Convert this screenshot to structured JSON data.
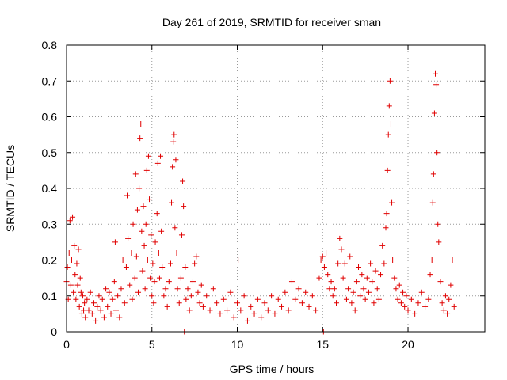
{
  "chart_data": {
    "type": "scatter",
    "title": "Day 261 of 2019, SRMTID for receiver sman",
    "xlabel": "GPS time / hours",
    "ylabel": "SRMTID / TECUs",
    "xlim": [
      0,
      24.5
    ],
    "ylim": [
      0,
      0.8
    ],
    "x_ticks": [
      0,
      5,
      10,
      15,
      20
    ],
    "x_tick_labels": [
      "0",
      "5",
      "10",
      "15",
      "20"
    ],
    "y_ticks": [
      0,
      0.1,
      0.2,
      0.3,
      0.4,
      0.5,
      0.6,
      0.7,
      0.8
    ],
    "y_tick_labels": [
      "0",
      "0.1",
      "0.2",
      "0.3",
      "0.4",
      "0.5",
      "0.6",
      "0.7",
      "0.8"
    ],
    "grid": true,
    "marker": "+",
    "marker_color": "#e00000",
    "series": [
      {
        "name": "SRMTID",
        "points": [
          [
            0.0,
            0.14
          ],
          [
            0.05,
            0.18
          ],
          [
            0.1,
            0.09
          ],
          [
            0.15,
            0.22
          ],
          [
            0.2,
            0.31
          ],
          [
            0.25,
            0.13
          ],
          [
            0.3,
            0.2
          ],
          [
            0.35,
            0.32
          ],
          [
            0.4,
            0.11
          ],
          [
            0.45,
            0.24
          ],
          [
            0.5,
            0.16
          ],
          [
            0.55,
            0.09
          ],
          [
            0.6,
            0.19
          ],
          [
            0.65,
            0.13
          ],
          [
            0.7,
            0.23
          ],
          [
            0.75,
            0.07
          ],
          [
            0.8,
            0.15
          ],
          [
            0.85,
            0.11
          ],
          [
            0.9,
            0.05
          ],
          [
            0.95,
            0.1
          ],
          [
            1.0,
            0.06
          ],
          [
            1.05,
            0.08
          ],
          [
            1.1,
            0.04
          ],
          [
            1.2,
            0.09
          ],
          [
            1.3,
            0.06
          ],
          [
            1.4,
            0.11
          ],
          [
            1.5,
            0.05
          ],
          [
            1.6,
            0.08
          ],
          [
            1.7,
            0.03
          ],
          [
            1.8,
            0.07
          ],
          [
            1.9,
            0.1
          ],
          [
            2.0,
            0.06
          ],
          [
            2.1,
            0.09
          ],
          [
            2.2,
            0.04
          ],
          [
            2.3,
            0.12
          ],
          [
            2.4,
            0.07
          ],
          [
            2.5,
            0.11
          ],
          [
            2.6,
            0.05
          ],
          [
            2.7,
            0.09
          ],
          [
            2.8,
            0.14
          ],
          [
            2.85,
            0.25
          ],
          [
            2.9,
            0.06
          ],
          [
            3.0,
            0.1
          ],
          [
            3.1,
            0.04
          ],
          [
            3.2,
            0.12
          ],
          [
            3.3,
            0.2
          ],
          [
            3.4,
            0.08
          ],
          [
            3.5,
            0.18
          ],
          [
            3.55,
            0.38
          ],
          [
            3.6,
            0.26
          ],
          [
            3.7,
            0.13
          ],
          [
            3.8,
            0.22
          ],
          [
            3.85,
            0.09
          ],
          [
            3.9,
            0.3
          ],
          [
            4.0,
            0.15
          ],
          [
            4.05,
            0.44
          ],
          [
            4.1,
            0.21
          ],
          [
            4.15,
            0.34
          ],
          [
            4.2,
            0.11
          ],
          [
            4.25,
            0.4
          ],
          [
            4.3,
            0.54
          ],
          [
            4.35,
            0.58
          ],
          [
            4.4,
            0.28
          ],
          [
            4.45,
            0.17
          ],
          [
            4.5,
            0.35
          ],
          [
            4.55,
            0.24
          ],
          [
            4.6,
            0.12
          ],
          [
            4.65,
            0.3
          ],
          [
            4.7,
            0.45
          ],
          [
            4.75,
            0.2
          ],
          [
            4.8,
            0.49
          ],
          [
            4.85,
            0.37
          ],
          [
            4.9,
            0.15
          ],
          [
            4.95,
            0.27
          ],
          [
            5.0,
            0.1
          ],
          [
            5.05,
            0.19
          ],
          [
            5.1,
            0.08
          ],
          [
            5.15,
            0.14
          ],
          [
            5.2,
            0.25
          ],
          [
            5.3,
            0.33
          ],
          [
            5.35,
            0.47
          ],
          [
            5.4,
            0.22
          ],
          [
            5.45,
            0.15
          ],
          [
            5.5,
            0.49
          ],
          [
            5.55,
            0.28
          ],
          [
            5.6,
            0.18
          ],
          [
            5.7,
            0.1
          ],
          [
            5.8,
            0.12
          ],
          [
            5.9,
            0.07
          ],
          [
            6.0,
            0.14
          ],
          [
            6.1,
            0.19
          ],
          [
            6.15,
            0.36
          ],
          [
            6.2,
            0.46
          ],
          [
            6.25,
            0.53
          ],
          [
            6.3,
            0.55
          ],
          [
            6.35,
            0.29
          ],
          [
            6.4,
            0.48
          ],
          [
            6.45,
            0.22
          ],
          [
            6.5,
            0.12
          ],
          [
            6.6,
            0.08
          ],
          [
            6.7,
            0.15
          ],
          [
            6.75,
            0.27
          ],
          [
            6.8,
            0.42
          ],
          [
            6.85,
            0.35
          ],
          [
            6.9,
            0.0
          ],
          [
            6.95,
            0.18
          ],
          [
            7.0,
            0.09
          ],
          [
            7.1,
            0.12
          ],
          [
            7.2,
            0.06
          ],
          [
            7.3,
            0.1
          ],
          [
            7.4,
            0.14
          ],
          [
            7.5,
            0.19
          ],
          [
            7.6,
            0.21
          ],
          [
            7.7,
            0.11
          ],
          [
            7.8,
            0.08
          ],
          [
            7.9,
            0.13
          ],
          [
            8.0,
            0.07
          ],
          [
            8.2,
            0.1
          ],
          [
            8.4,
            0.06
          ],
          [
            8.6,
            0.12
          ],
          [
            8.8,
            0.08
          ],
          [
            9.0,
            0.05
          ],
          [
            9.2,
            0.09
          ],
          [
            9.4,
            0.06
          ],
          [
            9.6,
            0.11
          ],
          [
            9.8,
            0.04
          ],
          [
            10.0,
            0.08
          ],
          [
            10.05,
            0.2
          ],
          [
            10.2,
            0.06
          ],
          [
            10.4,
            0.1
          ],
          [
            10.6,
            0.03
          ],
          [
            10.8,
            0.07
          ],
          [
            11.0,
            0.05
          ],
          [
            11.2,
            0.09
          ],
          [
            11.4,
            0.04
          ],
          [
            11.6,
            0.08
          ],
          [
            11.8,
            0.06
          ],
          [
            12.0,
            0.1
          ],
          [
            12.2,
            0.05
          ],
          [
            12.4,
            0.09
          ],
          [
            12.6,
            0.07
          ],
          [
            12.8,
            0.11
          ],
          [
            13.0,
            0.06
          ],
          [
            13.2,
            0.14
          ],
          [
            13.4,
            0.09
          ],
          [
            13.6,
            0.12
          ],
          [
            13.8,
            0.08
          ],
          [
            14.0,
            0.11
          ],
          [
            14.2,
            0.07
          ],
          [
            14.4,
            0.1
          ],
          [
            14.6,
            0.06
          ],
          [
            14.8,
            0.15
          ],
          [
            14.9,
            0.2
          ],
          [
            15.0,
            0.21
          ],
          [
            15.05,
            0.0
          ],
          [
            15.1,
            0.18
          ],
          [
            15.2,
            0.22
          ],
          [
            15.3,
            0.16
          ],
          [
            15.4,
            0.12
          ],
          [
            15.5,
            0.14
          ],
          [
            15.6,
            0.1
          ],
          [
            15.7,
            0.12
          ],
          [
            15.8,
            0.08
          ],
          [
            15.9,
            0.19
          ],
          [
            16.0,
            0.26
          ],
          [
            16.1,
            0.23
          ],
          [
            16.2,
            0.15
          ],
          [
            16.3,
            0.19
          ],
          [
            16.4,
            0.09
          ],
          [
            16.5,
            0.12
          ],
          [
            16.6,
            0.21
          ],
          [
            16.7,
            0.08
          ],
          [
            16.8,
            0.11
          ],
          [
            16.9,
            0.06
          ],
          [
            17.0,
            0.14
          ],
          [
            17.1,
            0.18
          ],
          [
            17.2,
            0.1
          ],
          [
            17.3,
            0.16
          ],
          [
            17.4,
            0.12
          ],
          [
            17.5,
            0.09
          ],
          [
            17.6,
            0.15
          ],
          [
            17.7,
            0.11
          ],
          [
            17.8,
            0.19
          ],
          [
            17.9,
            0.14
          ],
          [
            18.0,
            0.08
          ],
          [
            18.1,
            0.17
          ],
          [
            18.2,
            0.12
          ],
          [
            18.3,
            0.09
          ],
          [
            18.4,
            0.16
          ],
          [
            18.5,
            0.24
          ],
          [
            18.6,
            0.19
          ],
          [
            18.7,
            0.29
          ],
          [
            18.75,
            0.33
          ],
          [
            18.8,
            0.45
          ],
          [
            18.85,
            0.55
          ],
          [
            18.9,
            0.63
          ],
          [
            18.95,
            0.7
          ],
          [
            19.0,
            0.58
          ],
          [
            19.05,
            0.36
          ],
          [
            19.1,
            0.2
          ],
          [
            19.2,
            0.15
          ],
          [
            19.3,
            0.12
          ],
          [
            19.4,
            0.09
          ],
          [
            19.5,
            0.13
          ],
          [
            19.6,
            0.08
          ],
          [
            19.7,
            0.11
          ],
          [
            19.8,
            0.07
          ],
          [
            19.9,
            0.1
          ],
          [
            20.0,
            0.06
          ],
          [
            20.2,
            0.09
          ],
          [
            20.4,
            0.05
          ],
          [
            20.6,
            0.08
          ],
          [
            20.8,
            0.11
          ],
          [
            21.0,
            0.07
          ],
          [
            21.2,
            0.09
          ],
          [
            21.3,
            0.16
          ],
          [
            21.4,
            0.2
          ],
          [
            21.45,
            0.36
          ],
          [
            21.5,
            0.44
          ],
          [
            21.55,
            0.61
          ],
          [
            21.6,
            0.72
          ],
          [
            21.65,
            0.69
          ],
          [
            21.7,
            0.5
          ],
          [
            21.75,
            0.3
          ],
          [
            21.8,
            0.25
          ],
          [
            21.9,
            0.14
          ],
          [
            22.0,
            0.08
          ],
          [
            22.1,
            0.06
          ],
          [
            22.2,
            0.1
          ],
          [
            22.3,
            0.05
          ],
          [
            22.4,
            0.09
          ],
          [
            22.5,
            0.13
          ],
          [
            22.6,
            0.2
          ],
          [
            22.7,
            0.07
          ]
        ]
      }
    ]
  }
}
